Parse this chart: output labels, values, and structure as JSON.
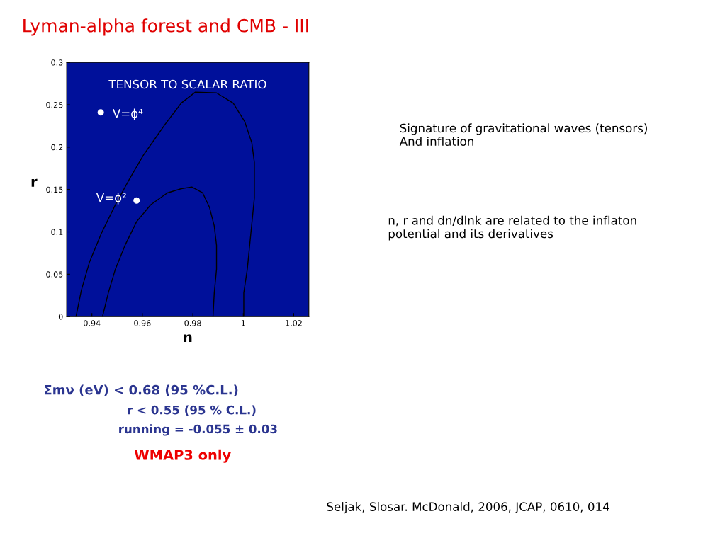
{
  "chart_data": {
    "type": "scatter",
    "title": "Lyman-alpha forest and CMB - III",
    "xlabel": "n",
    "ylabel": "r",
    "xlim": [
      0.93,
      1.026
    ],
    "ylim": [
      0,
      0.3
    ],
    "xticks": [
      0.94,
      0.96,
      0.98,
      1,
      1.02
    ],
    "yticks": [
      0,
      0.05,
      0.1,
      0.15,
      0.2,
      0.25,
      0.3
    ],
    "grid": false,
    "legend": false,
    "series": [
      {
        "type": "line",
        "color": "#000000",
        "x": [
          0.9337,
          0.9358,
          0.939,
          0.9437,
          0.9493,
          0.955,
          0.9605,
          0.9643,
          0.969,
          0.9754,
          0.981,
          0.9894,
          0.996,
          1.0006,
          1.0034,
          1.0044,
          1.0044,
          1.003,
          1.0016,
          1.0002,
          1.0002
        ],
        "values": [
          0,
          0.031,
          0.064,
          0.098,
          0.132,
          0.163,
          0.191,
          0.207,
          0.227,
          0.252,
          0.265,
          0.264,
          0.252,
          0.23,
          0.205,
          0.182,
          0.14,
          0.098,
          0.056,
          0.028,
          0
        ]
      },
      {
        "type": "line",
        "color": "#000000",
        "x": [
          0.9442,
          0.9465,
          0.9493,
          0.9531,
          0.9577,
          0.9633,
          0.9699,
          0.9755,
          0.9796,
          0.9839,
          0.9866,
          0.9885,
          0.9894,
          0.9894,
          0.9885,
          0.988
        ],
        "values": [
          0,
          0.028,
          0.056,
          0.084,
          0.112,
          0.132,
          0.146,
          0.151,
          0.153,
          0.146,
          0.129,
          0.107,
          0.084,
          0.056,
          0.028,
          0
        ]
      },
      {
        "color": "#ffffff",
        "marker": "circle",
        "x": [
          0.9435,
          0.9577
        ],
        "values": [
          0.241,
          0.137
        ]
      }
    ],
    "annotations": [
      "TENSOR TO SCALAR RATIO",
      {
        "text": "V=ϕ⁴",
        "x": 0.9435,
        "y": 0.241
      },
      {
        "text": "V=ϕ²",
        "x": 0.9577,
        "y": 0.137
      },
      "Signature of gravitational waves (tensors)\nAnd inflation",
      "n, r and dn/dlnk are related to the inflaton\npotential and its derivatives",
      "Σmν (eV) < 0.68 (95 %C.L.)",
      "r < 0.55 (95 % C.L.)",
      "running = -0.055 ± 0.03",
      "WMAP3 only",
      "Seljak, Slosar. McDonald, 2006, JCAP, 0610, 014"
    ]
  }
}
